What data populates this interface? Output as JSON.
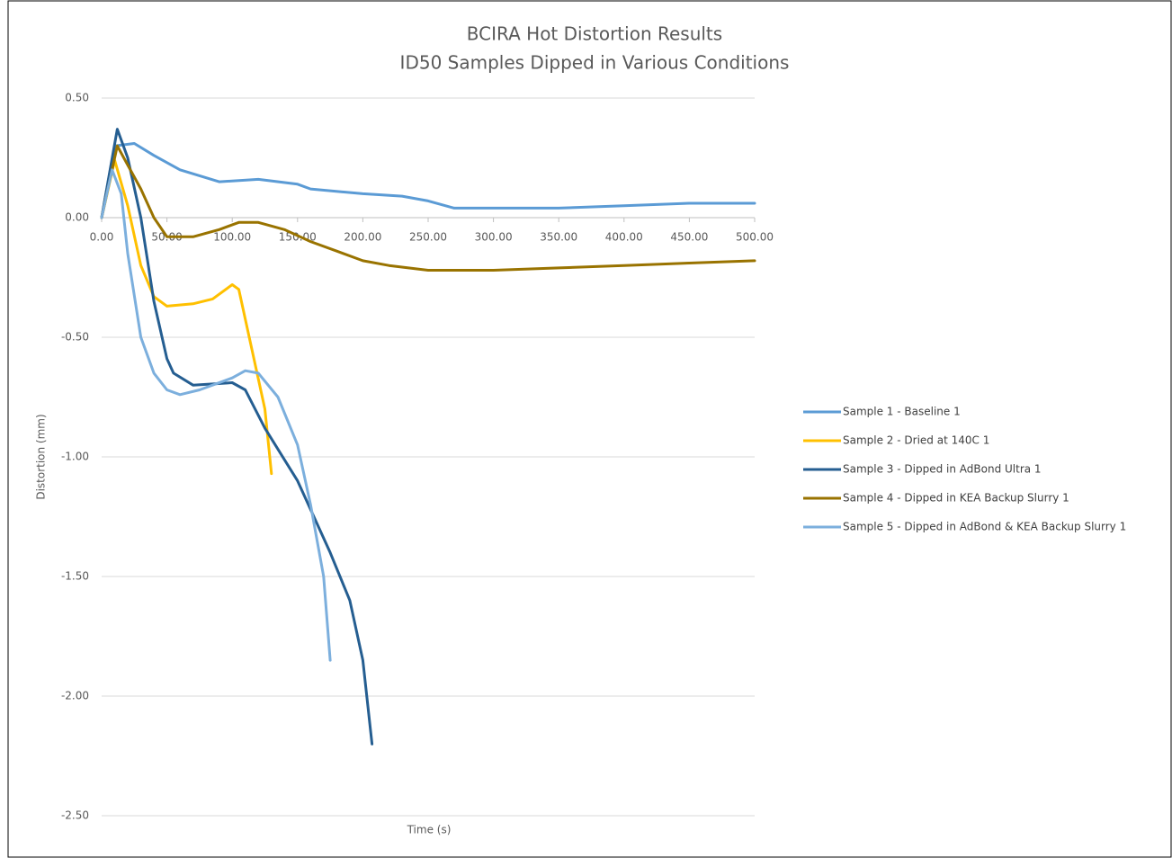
{
  "chart_data": {
    "type": "line",
    "title": "BCIRA Hot Distortion Results",
    "subtitle": "ID50 Samples Dipped in Various Conditions",
    "x_label": "Time (s)",
    "y_label": "Distortion (mm)",
    "xlim": [
      0,
      500
    ],
    "ylim": [
      -2.5,
      0.5
    ],
    "xticks": [
      {
        "value": 0,
        "label": "0.00"
      },
      {
        "value": 50,
        "label": "50.00"
      },
      {
        "value": 100,
        "label": "100.00"
      },
      {
        "value": 150,
        "label": "150.00"
      },
      {
        "value": 200,
        "label": "200.00"
      },
      {
        "value": 250,
        "label": "250.00"
      },
      {
        "value": 300,
        "label": "300.00"
      },
      {
        "value": 350,
        "label": "350.00"
      },
      {
        "value": 400,
        "label": "400.00"
      },
      {
        "value": 450,
        "label": "450.00"
      },
      {
        "value": 500,
        "label": "500.00"
      }
    ],
    "yticks": [
      {
        "value": 0.5,
        "label": "0.50"
      },
      {
        "value": 0,
        "label": "0.00"
      },
      {
        "value": -0.5,
        "label": "-0.50"
      },
      {
        "value": -1,
        "label": "-1.00"
      },
      {
        "value": -1.5,
        "label": "-1.50"
      },
      {
        "value": -2,
        "label": "-2.00"
      },
      {
        "value": -2.5,
        "label": "-2.50"
      }
    ],
    "grid": true,
    "legend": "right",
    "series": [
      {
        "name": "Sample 1 - Baseline 1",
        "color": "#5b9bd5",
        "x": [
          0,
          10,
          25,
          40,
          60,
          90,
          120,
          150,
          160,
          200,
          230,
          250,
          270,
          300,
          350,
          400,
          450,
          500
        ],
        "values": [
          0,
          0.3,
          0.31,
          0.26,
          0.2,
          0.15,
          0.16,
          0.14,
          0.12,
          0.1,
          0.09,
          0.07,
          0.04,
          0.04,
          0.04,
          0.05,
          0.06,
          0.06
        ]
      },
      {
        "name": "Sample 2 - Dried at 140C 1",
        "color": "#ffc000",
        "x": [
          0,
          10,
          20,
          30,
          40,
          50,
          70,
          85,
          100,
          105,
          115,
          125,
          130
        ],
        "values": [
          0,
          0.24,
          0.05,
          -0.2,
          -0.33,
          -0.37,
          -0.36,
          -0.34,
          -0.28,
          -0.3,
          -0.55,
          -0.8,
          -1.07
        ]
      },
      {
        "name": "Sample 3 - Dipped in AdBond Ultra 1",
        "color": "#255e91",
        "x": [
          0,
          12,
          20,
          30,
          40,
          50,
          55,
          70,
          100,
          110,
          125,
          150,
          175,
          190,
          200,
          207
        ],
        "values": [
          0,
          0.37,
          0.25,
          0,
          -0.35,
          -0.59,
          -0.65,
          -0.7,
          -0.69,
          -0.72,
          -0.88,
          -1.1,
          -1.4,
          -1.6,
          -1.85,
          -2.2
        ]
      },
      {
        "name": "Sample 4 - Dipped in KEA Backup Slurry 1",
        "color": "#997300",
        "x": [
          0,
          12,
          20,
          30,
          40,
          50,
          70,
          90,
          105,
          120,
          140,
          160,
          180,
          200,
          220,
          250,
          300,
          350,
          400,
          450,
          500
        ],
        "values": [
          0,
          0.3,
          0.22,
          0.12,
          0,
          -0.08,
          -0.08,
          -0.05,
          -0.02,
          -0.02,
          -0.05,
          -0.1,
          -0.14,
          -0.18,
          -0.2,
          -0.22,
          -0.22,
          -0.21,
          -0.2,
          -0.19,
          -0.18
        ]
      },
      {
        "name": "Sample 5 - Dipped in AdBond & KEA Backup Slurry 1",
        "color": "#7cafdd",
        "x": [
          0,
          8,
          15,
          20,
          30,
          40,
          50,
          60,
          75,
          100,
          110,
          120,
          135,
          150,
          160,
          170,
          175
        ],
        "values": [
          0,
          0.2,
          0.1,
          -0.15,
          -0.5,
          -0.65,
          -0.72,
          -0.74,
          -0.72,
          -0.67,
          -0.64,
          -0.65,
          -0.75,
          -0.95,
          -1.2,
          -1.5,
          -1.85
        ]
      }
    ]
  }
}
